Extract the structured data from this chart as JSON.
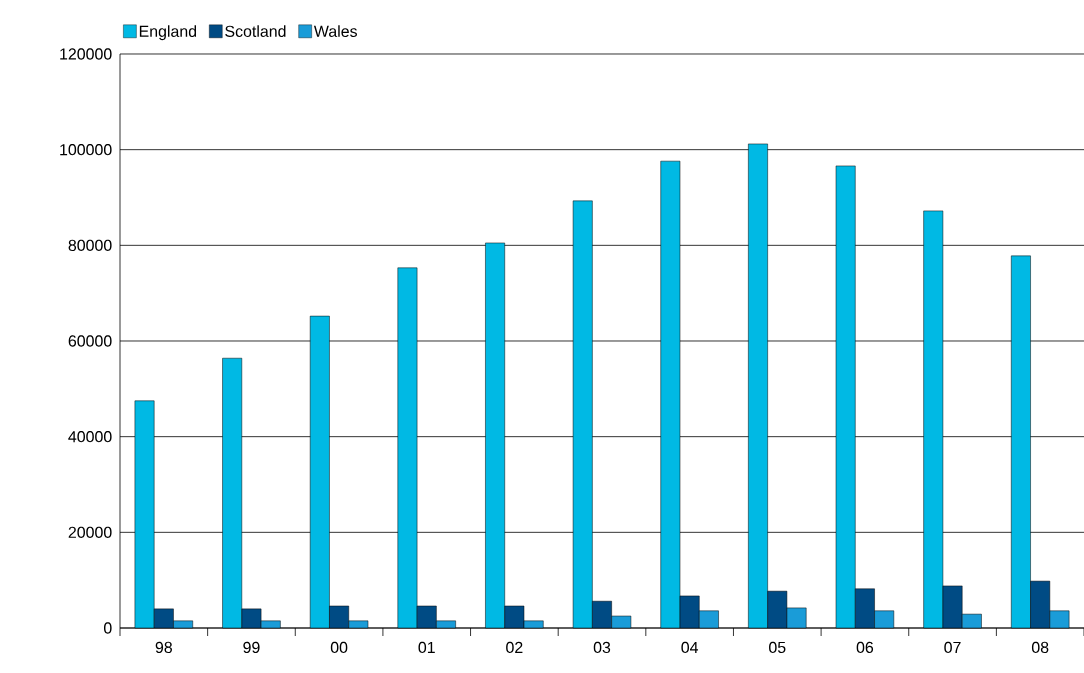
{
  "chart_data": {
    "type": "bar",
    "categories": [
      "98",
      "99",
      "00",
      "01",
      "02",
      "03",
      "04",
      "05",
      "06",
      "07",
      "08"
    ],
    "series": [
      {
        "name": "England",
        "color": "#00b9e4",
        "values": [
          47500,
          56400,
          65200,
          75300,
          80500,
          89300,
          97600,
          101200,
          96600,
          87200,
          77800
        ]
      },
      {
        "name": "Scotland",
        "color": "#004b84",
        "values": [
          4000,
          4000,
          4600,
          4600,
          4600,
          5600,
          6700,
          7700,
          8200,
          8800,
          9800
        ]
      },
      {
        "name": "Wales",
        "color": "#1a9cd8",
        "values": [
          1500,
          1500,
          1500,
          1500,
          1500,
          2500,
          3600,
          4200,
          3600,
          2900,
          3600
        ]
      }
    ],
    "ylim": [
      0,
      120000
    ],
    "yticks": [
      0,
      20000,
      40000,
      60000,
      80000,
      100000,
      120000
    ],
    "grid": "y",
    "legend": "top left"
  }
}
